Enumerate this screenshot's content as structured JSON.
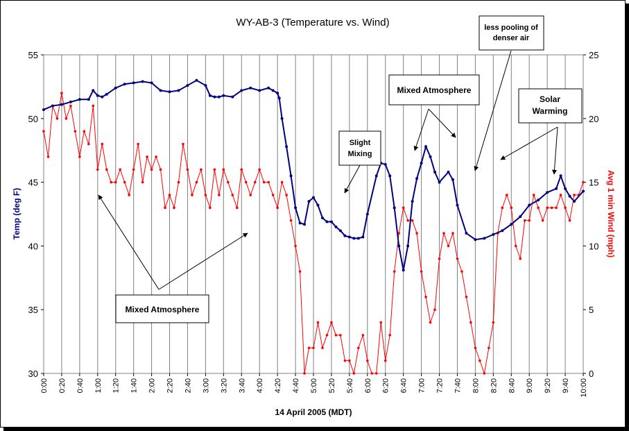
{
  "chart_data": {
    "type": "line",
    "title": "WY-AB-3 (Temperature vs. Wind)",
    "xlabel": "14 April 2005 (MDT)",
    "ylabel_left": "Temp (deg F)",
    "ylabel_right": "Avg 1 min Wind (mph)",
    "x_ticks": [
      "0:00",
      "0:20",
      "0:40",
      "1:00",
      "1:20",
      "1:40",
      "2:00",
      "2:20",
      "2:40",
      "3:00",
      "3:20",
      "3:40",
      "4:00",
      "4:20",
      "4:40",
      "5:00",
      "5:20",
      "5:40",
      "6:00",
      "6:20",
      "6:40",
      "7:00",
      "7:20",
      "7:40",
      "8:00",
      "8:20",
      "8:40",
      "9:00",
      "9:20",
      "9:40",
      "10:00"
    ],
    "xlim_minutes": [
      0,
      600
    ],
    "y_left": {
      "ticks": [
        30,
        35,
        40,
        45,
        50,
        55
      ],
      "lim": [
        30,
        55
      ]
    },
    "y_right": {
      "ticks": [
        0,
        5,
        10,
        15,
        20,
        25
      ],
      "lim": [
        0,
        25
      ]
    },
    "grid": "vertical",
    "colors": {
      "temperature": "#000080",
      "wind": "#ff0000"
    },
    "temperature_series": {
      "axis": "left",
      "x_minutes": [
        0,
        10,
        20,
        30,
        40,
        50,
        55,
        60,
        65,
        70,
        80,
        90,
        100,
        110,
        120,
        130,
        140,
        150,
        160,
        170,
        180,
        185,
        190,
        195,
        200,
        210,
        220,
        230,
        240,
        250,
        255,
        260,
        262,
        265,
        270,
        275,
        280,
        285,
        290,
        295,
        300,
        305,
        310,
        315,
        320,
        325,
        330,
        335,
        340,
        345,
        350,
        355,
        360,
        370,
        375,
        380,
        385,
        390,
        395,
        400,
        405,
        410,
        415,
        420,
        425,
        430,
        435,
        440,
        450,
        455,
        460,
        470,
        480,
        490,
        500,
        510,
        520,
        530,
        540,
        550,
        560,
        570,
        575,
        580,
        585,
        590,
        600
      ],
      "values": [
        50.7,
        51.0,
        51.1,
        51.3,
        51.5,
        51.5,
        52.2,
        51.8,
        51.7,
        51.9,
        52.4,
        52.7,
        52.8,
        52.9,
        52.8,
        52.2,
        52.1,
        52.2,
        52.6,
        53.0,
        52.6,
        51.8,
        51.7,
        51.7,
        51.8,
        51.7,
        52.2,
        52.4,
        52.2,
        52.4,
        52.2,
        52.0,
        51.6,
        50.0,
        47.8,
        45.5,
        43.0,
        41.8,
        41.7,
        43.5,
        43.8,
        43.2,
        42.2,
        41.9,
        41.9,
        41.5,
        41.2,
        40.8,
        40.7,
        40.6,
        40.6,
        40.7,
        42.5,
        45.5,
        46.5,
        46.4,
        45.5,
        43.0,
        40.0,
        38.1,
        40.0,
        43.5,
        45.3,
        46.5,
        47.8,
        47.0,
        45.8,
        45.0,
        45.8,
        45.2,
        43.2,
        41.0,
        40.5,
        40.6,
        40.9,
        41.2,
        41.7,
        42.3,
        43.2,
        43.6,
        44.2,
        44.5,
        45.5,
        44.5,
        43.9,
        43.5,
        44.3
      ]
    },
    "wind_series": {
      "axis": "right",
      "x_minutes": [
        0,
        5,
        10,
        15,
        20,
        25,
        30,
        35,
        40,
        45,
        50,
        55,
        60,
        65,
        70,
        75,
        80,
        85,
        90,
        95,
        100,
        105,
        110,
        115,
        120,
        125,
        130,
        135,
        140,
        145,
        150,
        155,
        160,
        165,
        170,
        175,
        180,
        185,
        190,
        195,
        200,
        205,
        210,
        215,
        220,
        225,
        230,
        235,
        240,
        245,
        250,
        255,
        260,
        265,
        270,
        275,
        280,
        285,
        290,
        295,
        300,
        305,
        310,
        315,
        320,
        325,
        330,
        335,
        340,
        345,
        350,
        355,
        360,
        365,
        370,
        375,
        380,
        385,
        390,
        395,
        400,
        405,
        410,
        415,
        420,
        425,
        430,
        435,
        440,
        445,
        450,
        455,
        460,
        465,
        470,
        475,
        480,
        485,
        490,
        495,
        500,
        505,
        510,
        515,
        520,
        525,
        530,
        535,
        540,
        545,
        550,
        555,
        560,
        565,
        570,
        575,
        580,
        585,
        590,
        595,
        600
      ],
      "values": [
        19,
        17,
        21,
        20,
        22,
        20,
        21,
        19,
        17,
        19,
        18,
        21,
        16,
        18,
        16,
        15,
        15,
        16,
        15,
        14,
        16,
        18,
        15,
        17,
        16,
        17,
        16,
        13,
        14,
        13,
        15,
        18,
        16,
        14,
        15,
        16,
        14,
        13,
        16,
        14,
        16,
        15,
        14,
        13,
        16,
        15,
        14,
        15,
        16,
        15,
        15,
        14,
        13,
        15,
        14,
        12,
        10,
        8,
        0,
        2,
        2,
        4,
        2,
        3,
        4,
        3,
        3,
        1,
        1,
        0,
        2,
        3,
        1,
        0,
        0,
        4,
        1,
        3,
        8,
        11,
        13,
        12,
        12,
        11,
        8,
        6,
        4,
        5,
        9,
        11,
        10,
        11,
        9,
        8,
        6,
        4,
        2,
        1,
        0,
        2,
        4,
        11,
        13,
        14,
        13,
        10,
        9,
        12,
        12,
        14,
        13,
        12,
        13,
        13,
        13,
        14,
        13,
        12,
        14,
        14,
        15
      ]
    },
    "annotations": [
      {
        "text": "Mixed Atmosphere",
        "lines": [
          "Mixed Atmosphere"
        ]
      },
      {
        "text": "Slight Mixing",
        "lines": [
          "Slight",
          "Mixing"
        ]
      },
      {
        "text": "Mixed Atmosphere",
        "lines": [
          "Mixed Atmosphere"
        ]
      },
      {
        "text": "less pooling of denser air",
        "lines": [
          "less pooling of",
          "denser air"
        ]
      },
      {
        "text": "Solar Warming",
        "lines": [
          "Solar",
          "Warming"
        ]
      }
    ]
  }
}
